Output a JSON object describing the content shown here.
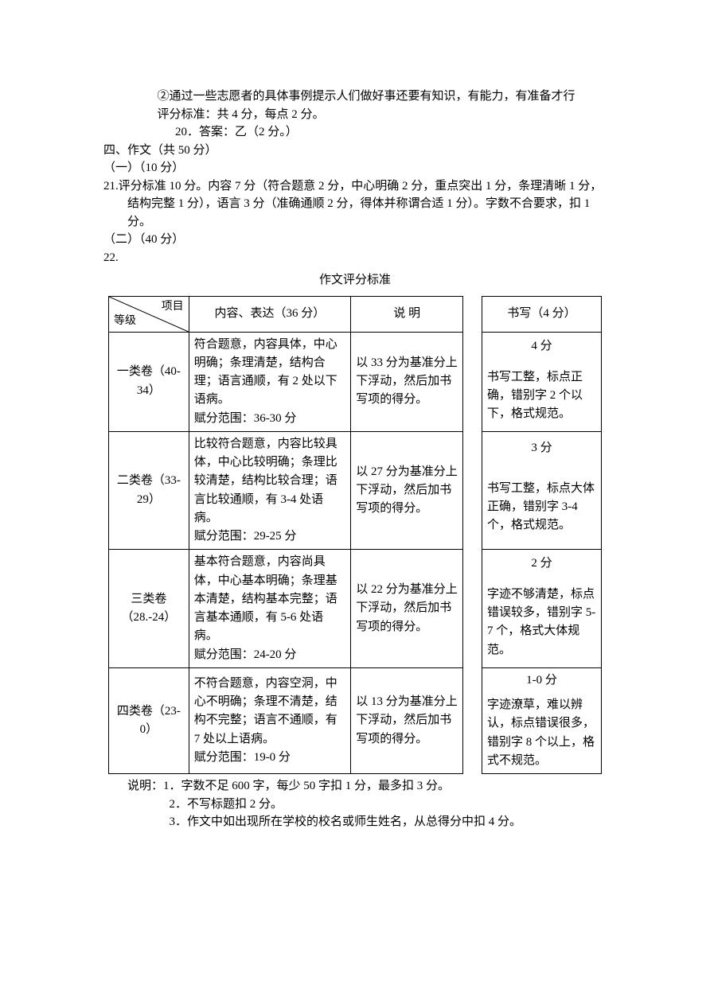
{
  "intro": {
    "line1": "②通过一些志愿者的具体事例提示人们做好事还要有知识，有能力，有准备才行",
    "line2": "评分标准：共 4 分，每点 2 分。",
    "line3": "20．答案：乙（2 分。）"
  },
  "section4": {
    "heading": "四、作文（共 50 分）",
    "part1_label": "（一）（10 分）",
    "q21": "21.评分标准 10 分。内容 7 分（符合题意 2 分，中心明确 2 分，重点突出 1 分，条理清晰 1 分，结构完整 1 分），语言 3 分（准确通顺 2 分，得体并称谓合适 1 分）。字数不合要求，扣 1 分。",
    "part2_label": "（二）（40 分）",
    "q22_label": "22.",
    "rubric_title": "作文评分标准"
  },
  "table": {
    "diag_top": "项目",
    "diag_bot": "等级",
    "headers": {
      "content": "内容、表达（36 分）",
      "desc": "说  明",
      "writing": "书写（4 分）"
    },
    "rows": [
      {
        "level": "一类卷（40-34）",
        "content": "符合题意，内容具体，中心明确；条理清楚，结构合理；语言通顺，有 2 处以下语病。\n赋分范围：36-30 分",
        "desc": "以 33 分为基准分上下浮动，然后加书写项的得分。",
        "score": "4 分",
        "writing": "书写工整，标点正确，错别字 2 个以下，格式规范。"
      },
      {
        "level": "二类卷（33-29）",
        "content": "比较符合题意，内容比较具体，中心比较明确；条理比较清楚，结构比较合理；语言比较通顺，有 3-4 处语病。\n赋分范围：29-25 分",
        "desc": "以 27 分为基准分上下浮动，然后加书写项的得分。",
        "score": "3 分",
        "writing": "书写工整，标点大体正确，错别字 3-4 个，格式规范。"
      },
      {
        "level": "三类卷（28.-24）",
        "content": "基本符合题意，内容尚具体，中心基本明确；条理基本清楚，结构基本完整；语言基本通顺，有 5-6 处语病。\n赋分范围：24-20 分",
        "desc": "以 22 分为基准分上下浮动，然后加书写项的得分。",
        "score": "2 分",
        "writing": "字迹不够清楚，标点错误较多，错别字 5-7 个，格式大体规范。"
      },
      {
        "level": "四类卷（23-0）",
        "content": "不符合题意，内容空洞，中心不明确；条理不清楚，结构不完整；语言不通顺，有 7 处以上语病。\n赋分范围：19-0 分",
        "desc": "以 13 分为基准分上下浮动，然后加书写项的得分。",
        "score": "1-0 分",
        "writing": "字迹潦草，难以辨认，标点错误很多，错别字 8 个以上，格式不规范。"
      }
    ]
  },
  "notes": {
    "n1": "说明：1．字数不足 600 字，每少 50 字扣 1 分，最多扣 3 分。",
    "n2": "2．不写标题扣 2 分。",
    "n3": "3．作文中如出现所在学校的校名或师生姓名，从总得分中扣 4 分。"
  }
}
